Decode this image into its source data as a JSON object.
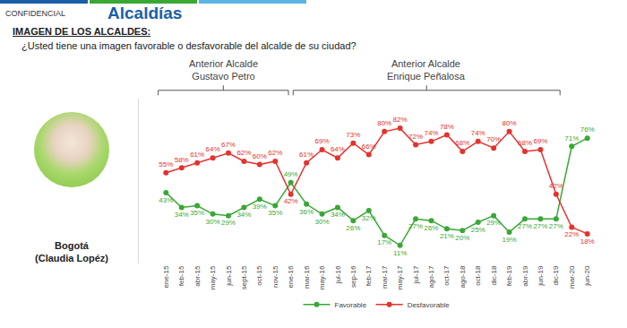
{
  "header": {
    "label": "CONFIDENCIAL",
    "title": "Alcaldías",
    "section": "IMAGEN DE LOS ALCALDES:",
    "question": "¿Usted tiene una imagen favorable o desfavorable del alcalde de su ciudad?"
  },
  "profile": {
    "city": "Bogotá",
    "name": "(Claudia Lopéz)"
  },
  "chart_data": {
    "type": "line",
    "categories": [
      "ene-15",
      "feb-15",
      "abr-15",
      "may-15",
      "jun-15",
      "sept-15",
      "oct-15",
      "nov-15",
      "ene-16",
      "mar-16",
      "may-16",
      "jul-16",
      "sep-16",
      "feb-17",
      "mar-17",
      "may-17",
      "jul-17",
      "ago-17",
      "oct-17",
      "ago-18",
      "oct-18",
      "dic-18",
      "feb-19",
      "abr-19",
      "jun-19",
      "dic-19",
      "mar-20",
      "jun-20"
    ],
    "series": [
      {
        "name": "Favorable",
        "color": "#3aa835",
        "marker": "circle",
        "values": [
          43,
          34,
          35,
          30,
          29,
          34,
          39,
          35,
          49,
          36,
          30,
          34,
          26,
          32,
          17,
          11,
          27,
          26,
          21,
          20,
          25,
          29,
          19,
          27,
          27,
          27,
          71,
          76
        ],
        "value_labels": [
          "43%",
          "34%",
          "35%",
          "30%",
          "29%",
          "34%",
          "39%",
          "35%",
          "49%",
          "36%",
          "30%",
          "34%",
          "26%",
          "32%",
          "17%",
          "11%",
          "27%",
          "26%",
          "21%",
          "20%",
          "25%",
          "29%",
          "19%",
          "27%",
          "27%",
          "27%",
          "71%",
          "76%"
        ]
      },
      {
        "name": "Desfavorable",
        "color": "#e5322d",
        "marker": "circle",
        "values": [
          55,
          58,
          61,
          64,
          67,
          62,
          60,
          62,
          42,
          61,
          69,
          64,
          73,
          66,
          80,
          82,
          72,
          74,
          78,
          68,
          74,
          70,
          80,
          68,
          69,
          42,
          22,
          18
        ],
        "value_labels": [
          "55%",
          "58%",
          "61%",
          "64%",
          "67%",
          "62%",
          "60%",
          "62%",
          "42%",
          "61%",
          "69%",
          "64%",
          "73%",
          "66%",
          "80%",
          "82%",
          "72%",
          "74%",
          "78%",
          "68%",
          "74%",
          "70%",
          "80%",
          "68%",
          "69%",
          "42%",
          "22%",
          "18%"
        ]
      }
    ],
    "ylim": [
      0,
      100
    ],
    "yticks": [],
    "grid": false,
    "legend": "bottom",
    "data_labels": true,
    "tick_labels": "x",
    "annotations": [
      {
        "text": "Anterior Alcalde\nGustavo Petro",
        "start": "ene-15",
        "end": "ene-16"
      },
      {
        "text": "Anterior Alcalde\nEnrique Peñalosa",
        "start": "ene-16",
        "end": "dic-19"
      }
    ]
  }
}
